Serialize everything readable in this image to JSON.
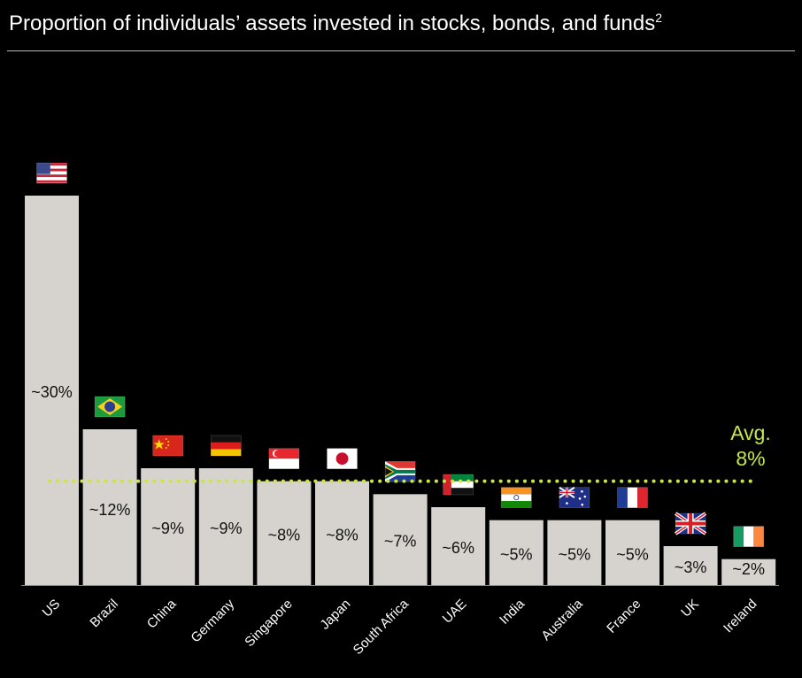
{
  "title": "Proportion of individuals’ assets invested in stocks, bonds, and funds",
  "title_footnote": "2",
  "colors": {
    "bar": "#d6d2ce",
    "avg_line": "#c8e64a",
    "background": "#000000",
    "label": "#111111"
  },
  "avg": {
    "line1": "Avg.",
    "line2": "8%",
    "value": 8
  },
  "chart_data": {
    "type": "bar",
    "title": "Proportion of individuals’ assets invested in stocks, bonds, and funds",
    "categories": [
      "US",
      "Brazil",
      "China",
      "Germany",
      "Singapore",
      "Japan",
      "South Africa",
      "UAE",
      "India",
      "Australia",
      "France",
      "UK",
      "Ireland"
    ],
    "values": [
      30,
      12,
      9,
      9,
      8,
      8,
      7,
      6,
      5,
      5,
      5,
      3,
      2
    ],
    "labels": [
      "~30%",
      "~12%",
      "~9%",
      "~9%",
      "~8%",
      "~8%",
      "~7%",
      "~6%",
      "~5%",
      "~5%",
      "~5%",
      "~3%",
      "~2%"
    ],
    "flags": [
      "us-flag",
      "brazil-flag",
      "china-flag",
      "germany-flag",
      "singapore-flag",
      "japan-flag",
      "south-africa-flag",
      "uae-flag",
      "india-flag",
      "australia-flag",
      "france-flag",
      "uk-flag",
      "ireland-flag"
    ],
    "reference_line": {
      "name": "Avg.",
      "value": 8,
      "style": "dotted"
    },
    "xlabel": "",
    "ylabel": "",
    "ylim": [
      0,
      30
    ],
    "grid": false
  }
}
